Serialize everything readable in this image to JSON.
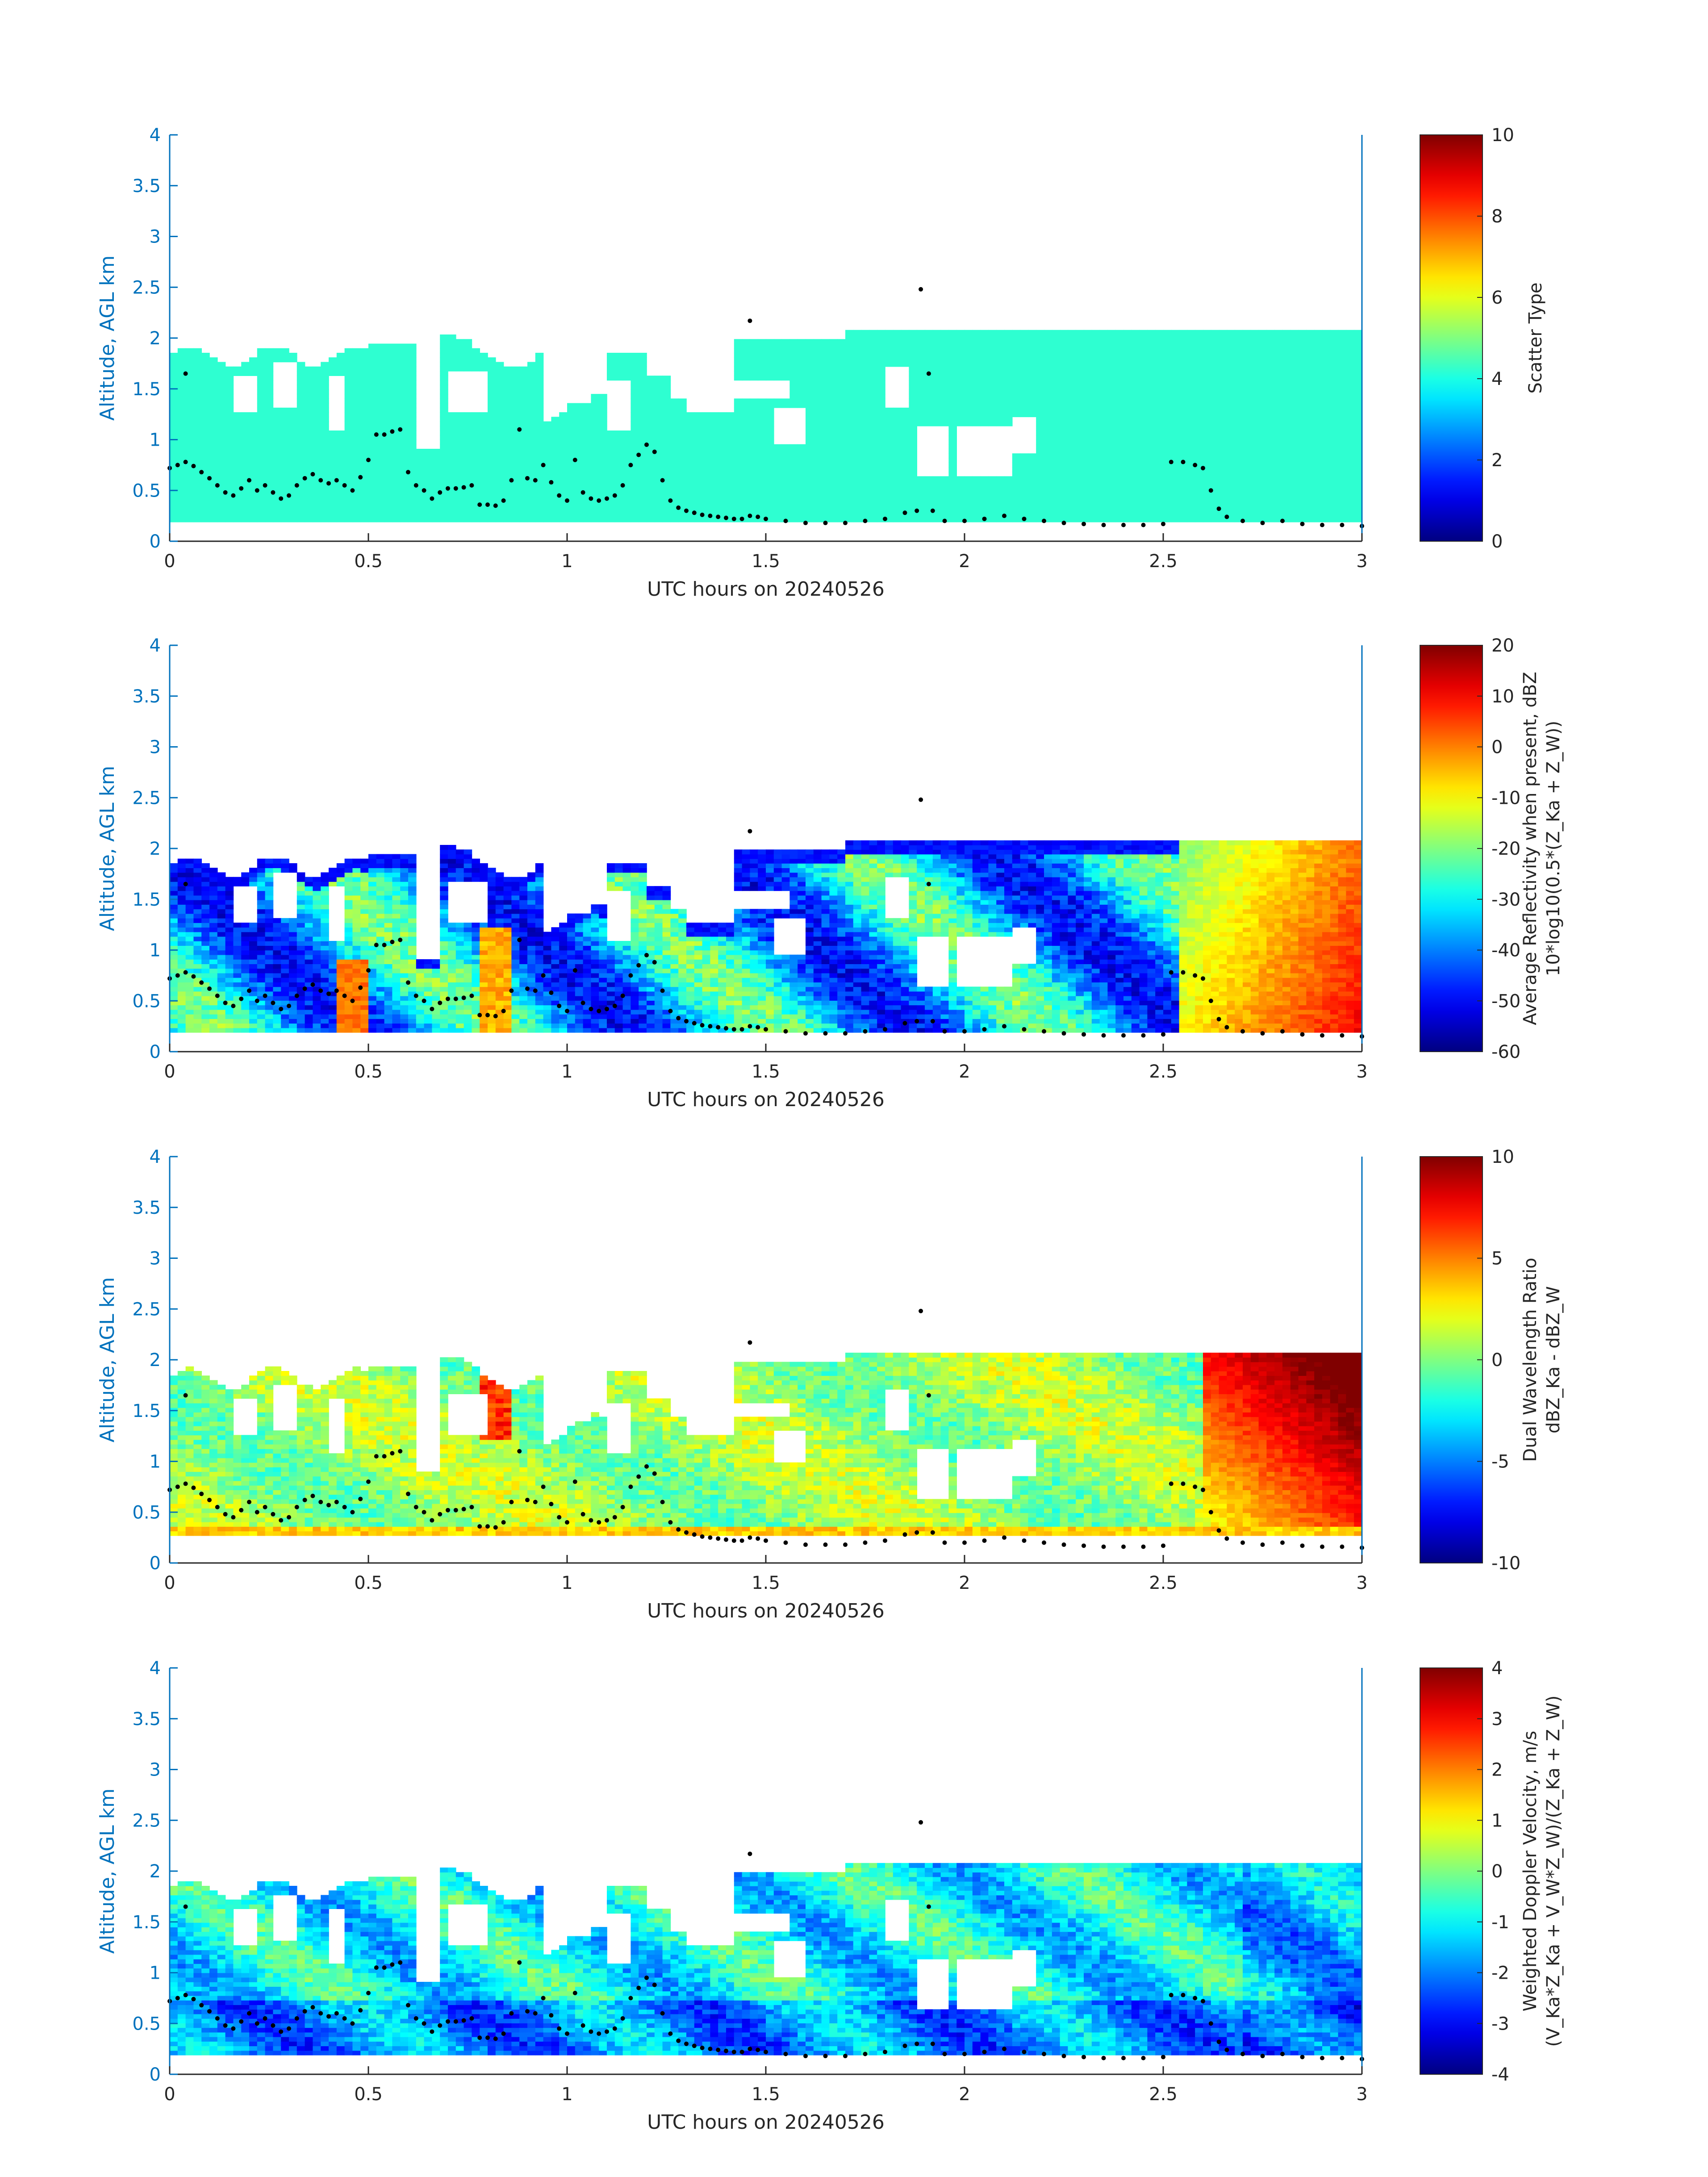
{
  "colors": {
    "axis": "#0072BD",
    "text": "#262626",
    "cloud_base_dots": "#000000"
  },
  "colormap": "jet",
  "chart_data": [
    {
      "type": "heatmap",
      "xlabel": "UTC hours on 20240526",
      "ylabel": "Altitude, AGL km",
      "xlim": [
        0,
        3
      ],
      "ylim": [
        0,
        4
      ],
      "xticks": [
        "0",
        "0.5",
        "1",
        "1.5",
        "2",
        "2.5",
        "3"
      ],
      "yticks": [
        "0",
        "0.5",
        "1",
        "1.5",
        "2",
        "2.5",
        "3",
        "3.5",
        "4"
      ],
      "colorbar": {
        "label_lines": [
          "Scatter Type"
        ],
        "clim": [
          0,
          10
        ],
        "ticks": [
          "0",
          "2",
          "4",
          "6",
          "8",
          "10"
        ]
      },
      "field": "scatter_type",
      "constant_value": 4.2,
      "dominant_range": [
        4,
        4.5
      ]
    },
    {
      "type": "heatmap",
      "xlabel": "UTC hours on 20240526",
      "ylabel": "Altitude, AGL km",
      "xlim": [
        0,
        3
      ],
      "ylim": [
        0,
        4
      ],
      "xticks": [
        "0",
        "0.5",
        "1",
        "1.5",
        "2",
        "2.5",
        "3"
      ],
      "yticks": [
        "0",
        "0.5",
        "1",
        "1.5",
        "2",
        "2.5",
        "3",
        "3.5",
        "4"
      ],
      "colorbar": {
        "label_lines": [
          "Average Reflectivity when present, dBZ",
          "10*log10(0.5*(Z_Ka + Z_W))"
        ],
        "clim": [
          -60,
          20
        ],
        "ticks": [
          "-60",
          "-50",
          "-40",
          "-30",
          "-20",
          "-10",
          "0",
          "10",
          "20"
        ]
      },
      "field": "reflectivity",
      "dominant_range": [
        -55,
        15
      ]
    },
    {
      "type": "heatmap",
      "xlabel": "UTC hours on 20240526",
      "ylabel": "Altitude, AGL km",
      "xlim": [
        0,
        3
      ],
      "ylim": [
        0,
        4
      ],
      "xticks": [
        "0",
        "0.5",
        "1",
        "1.5",
        "2",
        "2.5",
        "3"
      ],
      "yticks": [
        "0",
        "0.5",
        "1",
        "1.5",
        "2",
        "2.5",
        "3",
        "3.5",
        "4"
      ],
      "colorbar": {
        "label_lines": [
          "Dual Wavelength Ratio",
          "dBZ_Ka - dBZ_W"
        ],
        "clim": [
          -10,
          10
        ],
        "ticks": [
          "-10",
          "-5",
          "0",
          "5",
          "10"
        ]
      },
      "field": "dwr",
      "dominant_range": [
        -3,
        10
      ]
    },
    {
      "type": "heatmap",
      "xlabel": "UTC hours on 20240526",
      "ylabel": "Altitude, AGL km",
      "xlim": [
        0,
        3
      ],
      "ylim": [
        0,
        4
      ],
      "xticks": [
        "0",
        "0.5",
        "1",
        "1.5",
        "2",
        "2.5",
        "3"
      ],
      "yticks": [
        "0",
        "0.5",
        "1",
        "1.5",
        "2",
        "2.5",
        "3",
        "3.5",
        "4"
      ],
      "colorbar": {
        "label_lines": [
          "Weighted Doppler Velocity, m/s",
          "(V_Ka*Z_Ka + V_W*Z_W)/(Z_Ka + Z_W)"
        ],
        "clim": [
          -4,
          4
        ],
        "ticks": [
          "-4",
          "-3",
          "-2",
          "-1",
          "0",
          "1",
          "2",
          "3",
          "4"
        ]
      },
      "field": "doppler_velocity",
      "dominant_range": [
        -3,
        1
      ]
    }
  ],
  "cloud_base": {
    "label": "cloud base (black dots)",
    "points": [
      [
        0.0,
        0.72
      ],
      [
        0.02,
        0.75
      ],
      [
        0.04,
        0.78
      ],
      [
        0.06,
        0.74
      ],
      [
        0.08,
        0.68
      ],
      [
        0.1,
        0.62
      ],
      [
        0.12,
        0.55
      ],
      [
        0.14,
        0.48
      ],
      [
        0.16,
        0.45
      ],
      [
        0.18,
        0.52
      ],
      [
        0.2,
        0.6
      ],
      [
        0.22,
        0.5
      ],
      [
        0.24,
        0.55
      ],
      [
        0.26,
        0.48
      ],
      [
        0.28,
        0.42
      ],
      [
        0.3,
        0.45
      ],
      [
        0.32,
        0.55
      ],
      [
        0.34,
        0.62
      ],
      [
        0.36,
        0.66
      ],
      [
        0.38,
        0.6
      ],
      [
        0.4,
        0.57
      ],
      [
        0.42,
        0.6
      ],
      [
        0.44,
        0.55
      ],
      [
        0.46,
        0.5
      ],
      [
        0.48,
        0.63
      ],
      [
        0.5,
        0.8
      ],
      [
        0.52,
        1.05
      ],
      [
        0.54,
        1.05
      ],
      [
        0.56,
        1.08
      ],
      [
        0.58,
        1.1
      ],
      [
        0.6,
        0.68
      ],
      [
        0.62,
        0.55
      ],
      [
        0.64,
        0.5
      ],
      [
        0.66,
        0.42
      ],
      [
        0.68,
        0.48
      ],
      [
        0.7,
        0.52
      ],
      [
        0.72,
        0.52
      ],
      [
        0.74,
        0.53
      ],
      [
        0.76,
        0.55
      ],
      [
        0.78,
        0.36
      ],
      [
        0.8,
        0.36
      ],
      [
        0.82,
        0.35
      ],
      [
        0.84,
        0.4
      ],
      [
        0.86,
        0.6
      ],
      [
        0.88,
        1.1
      ],
      [
        0.9,
        0.62
      ],
      [
        0.92,
        0.6
      ],
      [
        0.94,
        0.75
      ],
      [
        0.96,
        0.58
      ],
      [
        0.98,
        0.45
      ],
      [
        1.0,
        0.4
      ],
      [
        1.02,
        0.8
      ],
      [
        1.04,
        0.48
      ],
      [
        1.06,
        0.42
      ],
      [
        1.08,
        0.4
      ],
      [
        1.1,
        0.42
      ],
      [
        1.12,
        0.45
      ],
      [
        1.14,
        0.55
      ],
      [
        1.16,
        0.75
      ],
      [
        1.18,
        0.85
      ],
      [
        1.2,
        0.95
      ],
      [
        1.22,
        0.88
      ],
      [
        1.24,
        0.6
      ],
      [
        1.26,
        0.4
      ],
      [
        1.28,
        0.33
      ],
      [
        1.3,
        0.3
      ],
      [
        1.32,
        0.28
      ],
      [
        1.34,
        0.26
      ],
      [
        1.36,
        0.25
      ],
      [
        1.38,
        0.24
      ],
      [
        1.4,
        0.23
      ],
      [
        1.42,
        0.22
      ],
      [
        1.44,
        0.22
      ],
      [
        1.46,
        0.25
      ],
      [
        1.48,
        0.24
      ],
      [
        1.5,
        0.22
      ],
      [
        1.55,
        0.2
      ],
      [
        1.6,
        0.18
      ],
      [
        1.65,
        0.18
      ],
      [
        1.7,
        0.18
      ],
      [
        1.75,
        0.2
      ],
      [
        1.8,
        0.22
      ],
      [
        1.85,
        0.28
      ],
      [
        1.88,
        0.3
      ],
      [
        1.92,
        0.3
      ],
      [
        1.95,
        0.2
      ],
      [
        2.0,
        0.2
      ],
      [
        2.05,
        0.22
      ],
      [
        2.1,
        0.25
      ],
      [
        2.15,
        0.22
      ],
      [
        2.2,
        0.2
      ],
      [
        2.25,
        0.18
      ],
      [
        2.3,
        0.17
      ],
      [
        2.35,
        0.16
      ],
      [
        2.4,
        0.16
      ],
      [
        2.45,
        0.16
      ],
      [
        2.5,
        0.17
      ],
      [
        2.52,
        0.78
      ],
      [
        2.55,
        0.78
      ],
      [
        2.58,
        0.75
      ],
      [
        2.6,
        0.72
      ],
      [
        2.62,
        0.5
      ],
      [
        2.64,
        0.32
      ],
      [
        2.66,
        0.24
      ],
      [
        2.7,
        0.2
      ],
      [
        2.75,
        0.18
      ],
      [
        2.8,
        0.2
      ],
      [
        2.85,
        0.17
      ],
      [
        2.9,
        0.16
      ],
      [
        2.95,
        0.16
      ],
      [
        3.0,
        0.15
      ]
    ],
    "outliers": [
      [
        1.46,
        2.17
      ],
      [
        1.89,
        2.48
      ],
      [
        0.04,
        1.65
      ],
      [
        1.91,
        1.65
      ]
    ]
  }
}
